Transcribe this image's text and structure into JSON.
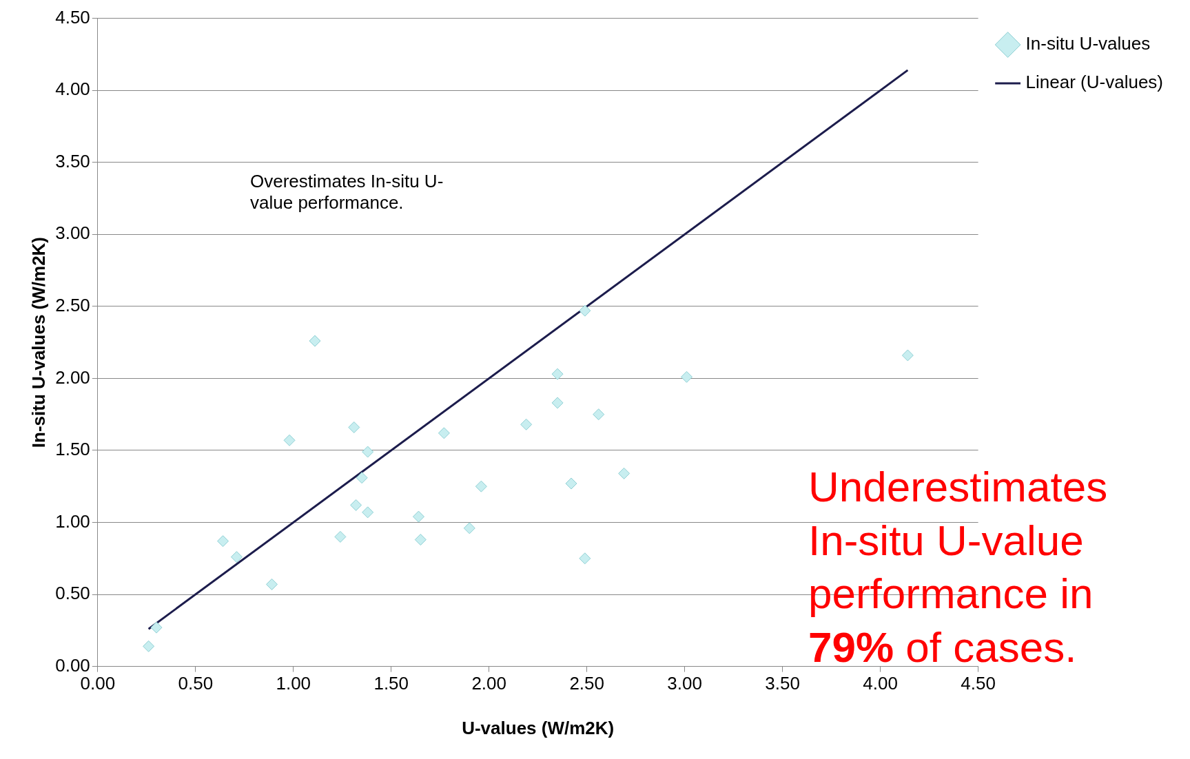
{
  "chart_data": {
    "type": "scatter",
    "xlabel": "U-values (W/m2K)",
    "ylabel": "In-situ U-values (W/m2K)",
    "xlim": [
      0,
      4.5
    ],
    "xticks": [
      {
        "value": 0,
        "label": "0.00"
      },
      {
        "value": 0.5,
        "label": "0.50"
      },
      {
        "value": 1,
        "label": "1.00"
      },
      {
        "value": 1.5,
        "label": "1.50"
      },
      {
        "value": 2,
        "label": "2.00"
      },
      {
        "value": 2.5,
        "label": "2.50"
      },
      {
        "value": 3,
        "label": "3.00"
      },
      {
        "value": 3.5,
        "label": "3.50"
      },
      {
        "value": 4,
        "label": "4.00"
      },
      {
        "value": 4.5,
        "label": "4.50"
      }
    ],
    "ylim": [
      0,
      4.5
    ],
    "yticks": [
      {
        "value": 0,
        "label": "0.00"
      },
      {
        "value": 0.5,
        "label": "0.50"
      },
      {
        "value": 1,
        "label": "1.00"
      },
      {
        "value": 1.5,
        "label": "1.50"
      },
      {
        "value": 2,
        "label": "2.00"
      },
      {
        "value": 2.5,
        "label": "2.50"
      },
      {
        "value": 3,
        "label": "3.00"
      },
      {
        "value": 3.5,
        "label": "3.50"
      },
      {
        "value": 4,
        "label": "4.00"
      },
      {
        "value": 4.5,
        "label": "4.50"
      }
    ],
    "grid": "y",
    "legend": "right",
    "series": [
      {
        "name": "In-situ U-values",
        "type": "scatter",
        "marker": "diamond",
        "color": "#c8eef0",
        "x": [
          0.26,
          0.3,
          0.64,
          0.71,
          0.89,
          0.98,
          1.11,
          1.24,
          1.31,
          1.32,
          1.35,
          1.38,
          1.38,
          1.64,
          1.65,
          1.77,
          1.9,
          1.96,
          2.19,
          2.35,
          2.35,
          2.42,
          2.49,
          2.49,
          2.56,
          2.69,
          3.01,
          4.14
        ],
        "values": [
          0.14,
          0.27,
          0.87,
          0.76,
          0.57,
          1.57,
          2.26,
          0.9,
          1.66,
          1.12,
          1.31,
          1.49,
          1.07,
          1.04,
          0.88,
          1.62,
          0.96,
          1.25,
          1.68,
          2.03,
          1.83,
          1.27,
          2.47,
          0.75,
          1.75,
          1.34,
          2.01,
          2.16
        ]
      },
      {
        "name": "Linear (U-values)",
        "type": "line",
        "color": "#1c1c4c",
        "x": [
          0.26,
          4.14
        ],
        "values": [
          0.26,
          4.14
        ]
      }
    ],
    "annotations": [
      "Overestimates In-situ U-value performance.",
      "Underestimates In-situ U-value performance in 79% of cases."
    ]
  }
}
